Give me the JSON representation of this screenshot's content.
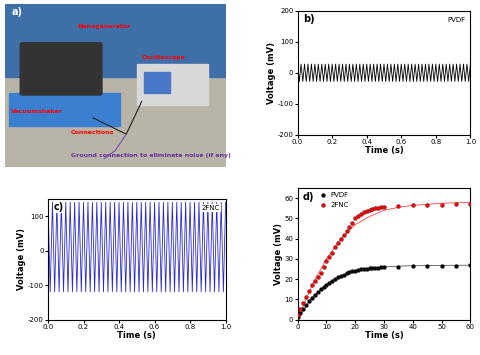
{
  "photo": {
    "panel_label": "a)",
    "labels": [
      "Nanogenerator",
      "Vacuumshaker",
      "Oscilloscope",
      "Connections",
      "Ground connection to eliminate noise (if any)"
    ]
  },
  "chart_data": [
    {
      "type": "line",
      "panel_label": "b)",
      "annotations": [
        "PVDF"
      ],
      "x_label": "Time (s)",
      "y_label": "Voltage (mV)",
      "xlim": [
        0,
        1
      ],
      "ylim": [
        -200,
        200
      ],
      "xticks": [
        {
          "value": 0,
          "label": "0.0"
        },
        {
          "value": 0.2,
          "label": "0.2"
        },
        {
          "value": 0.4,
          "label": "0.4"
        },
        {
          "value": 0.6,
          "label": "0.6"
        },
        {
          "value": 0.8,
          "label": "0.8"
        },
        {
          "value": 1,
          "label": "1.0"
        }
      ],
      "yticks": [
        -200,
        -100,
        0,
        100,
        200
      ],
      "series": [
        {
          "color": "#000000",
          "x": [
            0,
            0.01,
            0.02,
            0.03,
            0.04,
            0.05,
            0.06,
            0.07,
            0.08,
            0.09,
            0.1,
            0.11,
            0.12,
            0.13,
            0.14,
            0.15,
            0.16,
            0.17,
            0.18,
            0.19,
            0.2,
            0.21,
            0.22,
            0.23,
            0.24,
            0.25,
            0.26,
            0.27,
            0.28,
            0.29,
            0.3,
            0.31,
            0.32,
            0.33,
            0.34,
            0.35,
            0.36,
            0.37,
            0.38,
            0.39,
            0.4,
            0.41,
            0.42,
            0.43,
            0.44,
            0.45,
            0.46,
            0.47,
            0.48,
            0.49,
            0.5,
            0.51,
            0.52,
            0.53,
            0.54,
            0.55,
            0.56,
            0.57,
            0.58,
            0.59,
            0.6,
            0.61,
            0.62,
            0.63,
            0.64,
            0.65,
            0.66,
            0.67,
            0.68,
            0.69,
            0.7,
            0.71,
            0.72,
            0.73,
            0.74,
            0.75,
            0.76,
            0.77,
            0.78,
            0.79,
            0.8,
            0.81,
            0.82,
            0.83,
            0.84,
            0.85,
            0.86,
            0.87,
            0.88,
            0.89,
            0.9,
            0.91,
            0.92,
            0.93,
            0.94,
            0.95,
            0.96,
            0.97,
            0.98,
            0.99,
            1.0
          ],
          "values": [
            28,
            -28,
            28,
            -28,
            28,
            -28,
            28,
            -28,
            28,
            -28,
            28,
            -28,
            28,
            -28,
            28,
            -28,
            28,
            -28,
            28,
            -28,
            28,
            -28,
            28,
            -28,
            28,
            -28,
            28,
            -28,
            28,
            -28,
            28,
            -28,
            28,
            -28,
            28,
            -28,
            28,
            -28,
            28,
            -28,
            28,
            -28,
            28,
            -28,
            28,
            -28,
            28,
            -28,
            28,
            -28,
            28,
            -28,
            28,
            -28,
            28,
            -28,
            28,
            -28,
            28,
            -28,
            28,
            -28,
            28,
            -28,
            28,
            -28,
            28,
            -28,
            28,
            -28,
            28,
            -28,
            28,
            -28,
            28,
            -28,
            28,
            -28,
            28,
            -28,
            28,
            -28,
            28,
            -28,
            28,
            -28,
            28,
            -28,
            28,
            -28,
            28,
            -28,
            28,
            -28,
            28,
            -28,
            28,
            -28,
            28,
            -28,
            28
          ]
        }
      ]
    },
    {
      "type": "line",
      "panel_label": "c)",
      "annotations": [
        "2FNC"
      ],
      "x_label": "Time (s)",
      "y_label": "Voltage (mV)",
      "xlim": [
        0,
        1
      ],
      "ylim": [
        -200,
        150
      ],
      "xticks": [
        {
          "value": 0,
          "label": "0.0"
        },
        {
          "value": 0.2,
          "label": "0.2"
        },
        {
          "value": 0.4,
          "label": "0.4"
        },
        {
          "value": 0.6,
          "label": "0.6"
        },
        {
          "value": 0.8,
          "label": "0.8"
        },
        {
          "value": 1,
          "label": "1.0"
        }
      ],
      "yticks": [
        -200,
        -100,
        0,
        100
      ],
      "series": [
        {
          "color": "#2a2ad0",
          "x": [
            0,
            0.0125,
            0.025,
            0.0375,
            0.05,
            0.0625,
            0.075,
            0.0875,
            0.1,
            0.1125,
            0.125,
            0.1375,
            0.15,
            0.1625,
            0.175,
            0.1875,
            0.2,
            0.2125,
            0.225,
            0.2375,
            0.25,
            0.2625,
            0.275,
            0.2875,
            0.3,
            0.3125,
            0.325,
            0.3375,
            0.35,
            0.3625,
            0.375,
            0.3875,
            0.4,
            0.4125,
            0.425,
            0.4375,
            0.45,
            0.4625,
            0.475,
            0.4875,
            0.5,
            0.5125,
            0.525,
            0.5375,
            0.55,
            0.5625,
            0.575,
            0.5875,
            0.6,
            0.6125,
            0.625,
            0.6375,
            0.65,
            0.6625,
            0.675,
            0.6875,
            0.7,
            0.7125,
            0.725,
            0.7375,
            0.75,
            0.7625,
            0.775,
            0.7875,
            0.8,
            0.8125,
            0.825,
            0.8375,
            0.85,
            0.8625,
            0.875,
            0.8875,
            0.9,
            0.9125,
            0.925,
            0.9375,
            0.95,
            0.9625,
            0.975,
            0.9875,
            1.0
          ],
          "values": [
            140,
            -120,
            140,
            -120,
            140,
            -120,
            140,
            -120,
            140,
            -120,
            140,
            -120,
            140,
            -120,
            140,
            -120,
            140,
            -120,
            140,
            -120,
            140,
            -120,
            140,
            -120,
            140,
            -120,
            140,
            -120,
            140,
            -120,
            140,
            -120,
            140,
            -120,
            140,
            -120,
            140,
            -120,
            140,
            -120,
            140,
            -120,
            140,
            -120,
            140,
            -120,
            140,
            -120,
            140,
            -120,
            140,
            -120,
            140,
            -120,
            140,
            -120,
            140,
            -120,
            140,
            -120,
            140,
            -120,
            140,
            -120,
            140,
            -120,
            140,
            -120,
            140,
            -120,
            140,
            -120,
            140,
            -120,
            140,
            -120,
            140,
            -120,
            140,
            -120,
            140
          ]
        }
      ]
    },
    {
      "type": "scatter",
      "panel_label": "d)",
      "x_label": "Time (s)",
      "y_label": "Voltage (mV)",
      "xlim": [
        0,
        60
      ],
      "ylim": [
        0,
        65
      ],
      "xticks": [
        0,
        10,
        20,
        30,
        40,
        50,
        60
      ],
      "yticks": [
        0,
        10,
        20,
        30,
        40,
        50,
        60
      ],
      "legend": "upper left",
      "series": [
        {
          "name": "PVDF",
          "type": "scatter",
          "marker": "o",
          "color": "#000000",
          "x": [
            0,
            1,
            2,
            3,
            4,
            5,
            6,
            7,
            8,
            9,
            10,
            11,
            12,
            13,
            14,
            15,
            16,
            17,
            18,
            19,
            20,
            21,
            22,
            23,
            24,
            25,
            26,
            27,
            28,
            29,
            30,
            35,
            40,
            45,
            50,
            55,
            60
          ],
          "values": [
            1,
            3,
            5,
            7,
            9,
            10.5,
            12,
            13.5,
            15,
            16,
            17,
            18,
            19,
            20,
            21,
            21.5,
            22,
            22.8,
            23.3,
            23.8,
            24.2,
            24.5,
            24.8,
            25,
            25.2,
            25.4,
            25.5,
            25.6,
            25.7,
            25.8,
            25.9,
            26.2,
            26.4,
            26.5,
            26.6,
            26.7,
            26.8
          ]
        },
        {
          "name": "2FNC",
          "type": "scatter",
          "marker": "o",
          "color": "#ff0000",
          "x": [
            0,
            1,
            2,
            3,
            4,
            5,
            6,
            7,
            8,
            9,
            10,
            11,
            12,
            13,
            14,
            15,
            16,
            17,
            18,
            19,
            20,
            21,
            22,
            23,
            24,
            25,
            26,
            27,
            28,
            29,
            30,
            35,
            40,
            45,
            50,
            55,
            60
          ],
          "values": [
            2,
            5,
            8,
            11,
            14,
            17,
            19,
            21,
            23,
            26,
            29,
            31,
            33,
            36,
            38,
            40,
            42,
            44,
            46,
            48,
            50,
            51,
            52,
            53,
            53.5,
            54,
            54.5,
            55,
            55,
            55.5,
            55.5,
            56,
            56.5,
            56.5,
            56.5,
            57,
            57
          ]
        },
        {
          "type": "line",
          "color": "#555555",
          "x": [
            0,
            5,
            10,
            15,
            20,
            25,
            30,
            35,
            40,
            45,
            50,
            55,
            60
          ],
          "values": [
            0,
            11,
            17.5,
            21.5,
            24,
            25.3,
            26,
            26.4,
            26.6,
            26.7,
            26.8,
            26.8,
            26.9
          ]
        },
        {
          "type": "line",
          "color": "#ff4444",
          "x": [
            0,
            5,
            10,
            15,
            20,
            25,
            30,
            35,
            40,
            45,
            50,
            55,
            60
          ],
          "values": [
            0,
            17,
            30,
            40,
            47,
            51,
            54,
            55.5,
            56.5,
            57,
            57.5,
            57.8,
            58
          ]
        }
      ]
    }
  ]
}
